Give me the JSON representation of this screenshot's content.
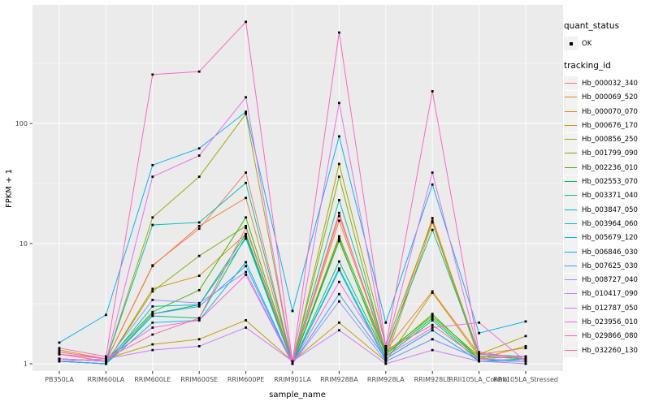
{
  "figure_bg": "#FFFFFF",
  "axis": {
    "xlabel": "sample_name",
    "ylabel": "FPKM + 1",
    "tick_color": "#333333",
    "tick_label_color": "#4D4D4D",
    "title_color": "#000000"
  },
  "legend": {
    "quant_status": {
      "title": "quant_status",
      "items": [
        {
          "label": "OK",
          "glyph": "point"
        }
      ]
    },
    "tracking_id": {
      "title": "tracking_id"
    }
  },
  "chart_data": {
    "type": "line",
    "title": "",
    "xlabel": "sample_name",
    "ylabel": "FPKM + 1",
    "y_scale": "log10",
    "ylim": [
      1,
      900
    ],
    "y_ticks": [
      1,
      10,
      100
    ],
    "grid": true,
    "legend_position": "right",
    "panel_bg": "#EBEBEB",
    "grid_color": "#FFFFFF",
    "point_color": "#000000",
    "point_shape": "square",
    "categories": [
      "PB350LA",
      "RRIM600LA",
      "RRIM600LE",
      "RRIM600SE",
      "RRIM600PE",
      "RRIM901LA",
      "RRIM928BA",
      "RRIM928LA",
      "RRIM928LE",
      "RRII105LA_Control",
      "RRII105LA_Stressed"
    ],
    "series": [
      {
        "name": "Hb_000032_340",
        "color": "#F8766D",
        "values": [
          1.2,
          1.05,
          6.6,
          13.3,
          39,
          1,
          18,
          1.2,
          16.3,
          1.1,
          1.05
        ]
      },
      {
        "name": "Hb_000069_520",
        "color": "#EA8331",
        "values": [
          1.1,
          1.05,
          6.5,
          14,
          24,
          1,
          15.5,
          1.3,
          4.0,
          1.2,
          1.35
        ]
      },
      {
        "name": "Hb_000070_070",
        "color": "#D89000",
        "values": [
          1.05,
          1,
          4.2,
          5.4,
          12,
          1,
          11,
          1.1,
          15,
          1.1,
          1.4
        ]
      },
      {
        "name": "Hb_000676_170",
        "color": "#C09B00",
        "values": [
          1.3,
          1.1,
          1.45,
          1.6,
          2.3,
          1.05,
          2.2,
          1.05,
          3.9,
          1.15,
          1.1
        ]
      },
      {
        "name": "Hb_000856_250",
        "color": "#A3A500",
        "values": [
          1.1,
          1.05,
          16.5,
          36,
          120,
          1,
          46,
          1.4,
          15.5,
          1.2,
          1.7
        ]
      },
      {
        "name": "Hb_001799_090",
        "color": "#7CAE00",
        "values": [
          1.05,
          1,
          4.0,
          7.9,
          14,
          1,
          36,
          1.2,
          2.6,
          1.1,
          1.05
        ]
      },
      {
        "name": "Hb_002236_010",
        "color": "#39B600",
        "values": [
          1.1,
          1.05,
          2.7,
          4.1,
          16.5,
          1,
          11.5,
          1.25,
          2.5,
          1.15,
          1.1
        ]
      },
      {
        "name": "Hb_002553_070",
        "color": "#00BB4E",
        "values": [
          1.05,
          1,
          2.6,
          3.1,
          12,
          1,
          10.5,
          1.2,
          2.4,
          1.1,
          1.05
        ]
      },
      {
        "name": "Hb_003371_040",
        "color": "#00BF7D",
        "values": [
          1.05,
          1,
          2.5,
          2.4,
          11.5,
          1,
          7.1,
          1.15,
          2.3,
          1.05,
          1.1
        ]
      },
      {
        "name": "Hb_003847_050",
        "color": "#00C1A3",
        "values": [
          1.1,
          1.05,
          14.3,
          15,
          32,
          1,
          23,
          1.3,
          13,
          1.2,
          1.15
        ]
      },
      {
        "name": "Hb_003964_060",
        "color": "#00BFC4",
        "values": [
          1.05,
          1,
          3.0,
          3.1,
          11,
          1,
          6.2,
          1.1,
          1.9,
          1.05,
          1.1
        ]
      },
      {
        "name": "Hb_005679_120",
        "color": "#00BAE0",
        "values": [
          1.05,
          1,
          2.2,
          2.3,
          7.0,
          1,
          6.0,
          1.05,
          1.6,
          1.1,
          1.05
        ]
      },
      {
        "name": "Hb_006846_030",
        "color": "#00B0F6",
        "values": [
          1.5,
          2.55,
          45,
          62,
          125,
          2.75,
          78,
          2.2,
          31,
          1.8,
          2.25
        ]
      },
      {
        "name": "Hb_007625_030",
        "color": "#35A2FF",
        "values": [
          1.05,
          1,
          2.6,
          3.0,
          6.5,
          1,
          3.8,
          1.1,
          1.9,
          1.05,
          1.05
        ]
      },
      {
        "name": "Hb_008727_040",
        "color": "#9590FF",
        "values": [
          1.1,
          1.05,
          3.4,
          3.2,
          5.8,
          1,
          3.3,
          1.05,
          1.6,
          1.1,
          1.05
        ]
      },
      {
        "name": "Hb_010417_090",
        "color": "#C77CFF",
        "values": [
          1.05,
          1.1,
          1.3,
          1.4,
          2.0,
          1.05,
          1.9,
          1,
          1.3,
          1.05,
          1
        ]
      },
      {
        "name": "Hb_012787_050",
        "color": "#E76BF3",
        "values": [
          1.1,
          1.05,
          36,
          54,
          165,
          1,
          148,
          1.35,
          39,
          1.2,
          1.1
        ]
      },
      {
        "name": "Hb_023956_010",
        "color": "#FA62DB",
        "values": [
          1.2,
          1.1,
          2.0,
          2.3,
          5.5,
          1,
          4.8,
          1.15,
          2.0,
          2.2,
          1.05
        ]
      },
      {
        "name": "Hb_029866_080",
        "color": "#FF62BC",
        "values": [
          1.35,
          1.15,
          255,
          270,
          700,
          1.05,
          570,
          1.4,
          185,
          1.25,
          1.1
        ]
      },
      {
        "name": "Hb_032260_130",
        "color": "#FF6A98",
        "values": [
          1.25,
          1.1,
          1.75,
          2.4,
          13.5,
          1,
          17,
          1.3,
          2.1,
          1.1,
          1.15
        ]
      }
    ]
  }
}
